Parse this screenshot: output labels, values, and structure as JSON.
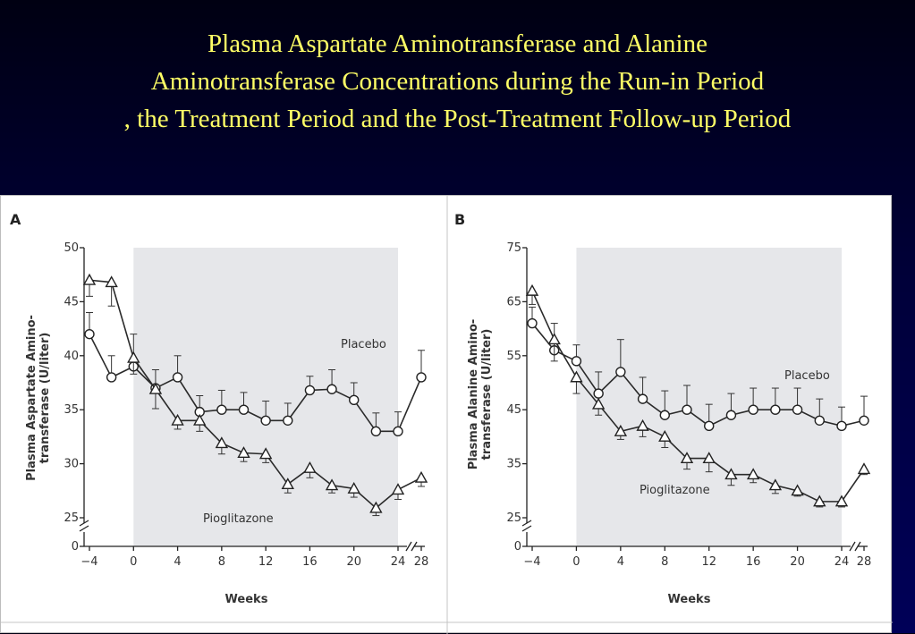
{
  "slide": {
    "title_lines": [
      "Plasma Aspartate Aminotransferase and Alanine",
      "Aminotransferase Concentrations during the Run-in Period",
      ", the Treatment Period and the Post-Treatment Follow-up Period"
    ]
  },
  "colors": {
    "title": "#ffff66",
    "background": "#00003a",
    "shaded_period": "#e6e7ea",
    "series_line": "#2a2a2a"
  },
  "chart_data": [
    {
      "type": "line",
      "panel_label": "A",
      "xlabel": "Weeks",
      "ylabel_lines": [
        "Plasma Aspartate Amino-",
        "transferase (U/liter)"
      ],
      "x_ticks": [
        -4,
        0,
        4,
        8,
        12,
        16,
        20,
        24,
        28
      ],
      "y_ticks": [
        0,
        25,
        30,
        35,
        40,
        45,
        50
      ],
      "ylim": [
        25,
        50
      ],
      "y_axis_break": true,
      "x_axis_break": true,
      "shaded_period": [
        0,
        24
      ],
      "grid": false,
      "series": [
        {
          "name": "Placebo",
          "marker": "circle",
          "x": [
            -4,
            -2,
            0,
            2,
            4,
            6,
            8,
            10,
            12,
            14,
            16,
            18,
            20,
            22,
            24,
            28
          ],
          "values": [
            42,
            38,
            39,
            37,
            38,
            34.8,
            35,
            35,
            34,
            34,
            36.8,
            36.9,
            35.9,
            33,
            33,
            38
          ],
          "error_up": [
            2.0,
            2.0,
            3.0,
            1.7,
            2.0,
            1.5,
            1.8,
            1.6,
            1.8,
            1.6,
            1.3,
            1.8,
            1.6,
            1.7,
            1.8,
            2.5
          ]
        },
        {
          "name": "Pioglitazone",
          "marker": "triangle",
          "x": [
            -4,
            -2,
            0,
            2,
            4,
            6,
            8,
            10,
            12,
            14,
            16,
            18,
            20,
            22,
            24,
            28
          ],
          "values": [
            47,
            46.8,
            39.8,
            36.9,
            34,
            34,
            31.9,
            31,
            30.9,
            28.1,
            29.6,
            28,
            27.7,
            25.9,
            27.6,
            28.7
          ],
          "error_down": [
            1.5,
            2.2,
            1.5,
            1.8,
            0.8,
            1.0,
            1.0,
            0.8,
            0.8,
            0.8,
            0.9,
            0.7,
            0.8,
            0.7,
            0.9,
            0.8
          ]
        }
      ]
    },
    {
      "type": "line",
      "panel_label": "B",
      "xlabel": "Weeks",
      "ylabel_lines": [
        "Plasma Alanine Amino-",
        "transferase (U/liter)"
      ],
      "x_ticks": [
        -4,
        0,
        4,
        8,
        12,
        16,
        20,
        24,
        28
      ],
      "y_ticks": [
        0,
        25,
        35,
        45,
        55,
        65,
        75
      ],
      "ylim": [
        25,
        75
      ],
      "y_axis_break": true,
      "x_axis_break": true,
      "shaded_period": [
        0,
        24
      ],
      "grid": false,
      "series": [
        {
          "name": "Placebo",
          "marker": "circle",
          "x": [
            -4,
            -2,
            0,
            2,
            4,
            6,
            8,
            10,
            12,
            14,
            16,
            18,
            20,
            22,
            24,
            28
          ],
          "values": [
            61,
            56,
            54,
            48,
            52,
            47,
            44,
            45,
            42,
            44,
            45,
            45,
            45,
            43,
            42,
            43
          ],
          "error_up": [
            3.0,
            5.0,
            3.0,
            4.0,
            6.0,
            4.0,
            4.5,
            4.5,
            4.0,
            4.0,
            4.0,
            4.0,
            4.0,
            4.0,
            3.5,
            4.5
          ]
        },
        {
          "name": "Pioglitazone",
          "marker": "triangle",
          "x": [
            -4,
            -2,
            0,
            2,
            4,
            6,
            8,
            10,
            12,
            14,
            16,
            18,
            20,
            22,
            24,
            28
          ],
          "values": [
            67,
            58,
            51,
            46,
            41,
            42,
            40,
            36,
            36,
            33,
            33,
            31,
            30,
            28,
            28,
            34
          ],
          "error_down": [
            2.5,
            4.0,
            3.0,
            2.0,
            1.5,
            2.0,
            2.0,
            2.0,
            2.5,
            2.0,
            1.5,
            1.5,
            1.0,
            1.0,
            1.0,
            1.0
          ]
        }
      ]
    }
  ]
}
